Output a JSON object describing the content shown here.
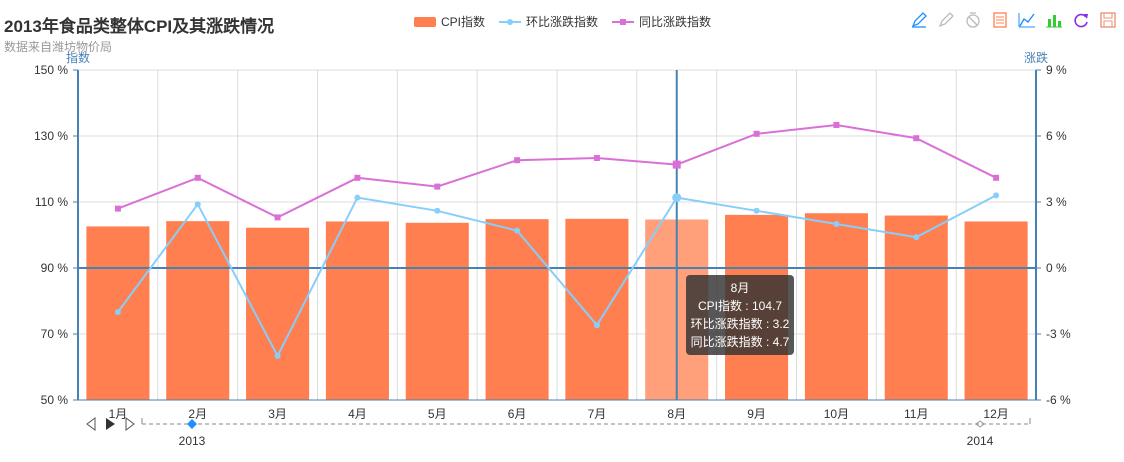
{
  "header": {
    "title": "2013年食品类整体CPI及其涨跌情况",
    "subtitle": "数据来自潍坊物价局"
  },
  "legend": {
    "items": [
      {
        "label": "CPI指数",
        "color": "#ff7f50"
      },
      {
        "label": "环比涨跌指数",
        "color": "#87cefa"
      },
      {
        "label": "同比涨跌指数",
        "color": "#da70d6"
      }
    ]
  },
  "toolbox": {
    "icons": [
      "mark-icon",
      "mark-undo-icon",
      "mark-clear-icon",
      "data-view-icon",
      "line-chart-icon",
      "bar-chart-icon",
      "restore-icon",
      "save-image-icon"
    ]
  },
  "timeline": {
    "start_label": "2013",
    "end_label": "2014"
  },
  "tooltip": {
    "title": "8月",
    "line1": "CPI指数 : 104.7",
    "line2": "环比涨跌指数 : 3.2",
    "line3": "同比涨跌指数 : 4.7"
  },
  "chart_data": {
    "type": "bar",
    "title": "2013年食品类整体CPI及其涨跌情况",
    "categories": [
      "1月",
      "2月",
      "3月",
      "4月",
      "5月",
      "6月",
      "7月",
      "8月",
      "9月",
      "10月",
      "11月",
      "12月"
    ],
    "y_left": {
      "name": "指数",
      "min": 50,
      "max": 150,
      "ticks": [
        "50 %",
        "70 %",
        "90 %",
        "110 %",
        "130 %",
        "150 %"
      ],
      "tick_values": [
        50,
        70,
        90,
        110,
        130,
        150
      ]
    },
    "y_right": {
      "name": "涨跌",
      "min": -6,
      "max": 9,
      "ticks": [
        "-6 %",
        "-3 %",
        "0 %",
        "3 %",
        "6 %",
        "9 %"
      ],
      "tick_values": [
        -6,
        -3,
        0,
        3,
        6,
        9
      ]
    },
    "series": [
      {
        "name": "CPI指数",
        "type": "bar",
        "axis": "left",
        "values": [
          102.6,
          104.2,
          102.2,
          104.1,
          103.7,
          104.8,
          104.9,
          104.7,
          106.1,
          106.6,
          105.9,
          104.1
        ]
      },
      {
        "name": "环比涨跌指数",
        "type": "line",
        "axis": "right",
        "values": [
          -2.0,
          2.9,
          -4.0,
          3.2,
          2.6,
          1.7,
          -2.6,
          3.2,
          2.6,
          2.0,
          1.4,
          3.3
        ]
      },
      {
        "name": "同比涨跌指数",
        "type": "line",
        "axis": "right",
        "values": [
          2.7,
          4.1,
          2.3,
          4.1,
          3.7,
          4.9,
          5.0,
          4.7,
          6.1,
          6.5,
          5.9,
          4.1
        ]
      }
    ],
    "highlighted_category": "8月"
  }
}
